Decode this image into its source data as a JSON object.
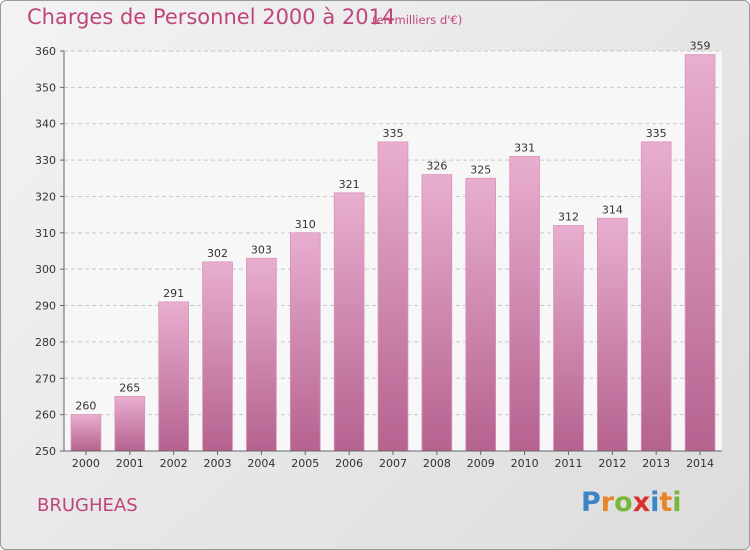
{
  "header": {
    "title": "Charges de Personnel 2000 à 2014",
    "unit": "(en milliers d'€)"
  },
  "footer": {
    "town": "BRUGHEAS",
    "logo_letters": [
      "P",
      "r",
      "o",
      "x",
      "i",
      "t",
      "i"
    ],
    "logo_colors": [
      "#3c86c6",
      "#e8842a",
      "#7bb63a",
      "#d9322c",
      "#3c86c6",
      "#e8842a",
      "#7bb63a"
    ]
  },
  "colors": {
    "title": "#c0457c",
    "bar_top": "#e8aed0",
    "bar_bottom": "#b5628f",
    "grid": "#c8c8c8"
  },
  "chart_data": {
    "type": "bar",
    "title": "Charges de Personnel 2000 à 2014",
    "subtitle": "(en milliers d'€)",
    "categories": [
      "2000",
      "2001",
      "2002",
      "2003",
      "2004",
      "2005",
      "2006",
      "2007",
      "2008",
      "2009",
      "2010",
      "2011",
      "2012",
      "2013",
      "2014"
    ],
    "values": [
      260,
      265,
      291,
      302,
      303,
      310,
      321,
      335,
      326,
      325,
      331,
      312,
      314,
      335,
      359
    ],
    "ylim": [
      250,
      360
    ],
    "yticks": [
      250,
      260,
      270,
      280,
      290,
      300,
      310,
      320,
      330,
      340,
      350,
      360
    ],
    "grid": true,
    "xlabel": "",
    "ylabel": ""
  }
}
